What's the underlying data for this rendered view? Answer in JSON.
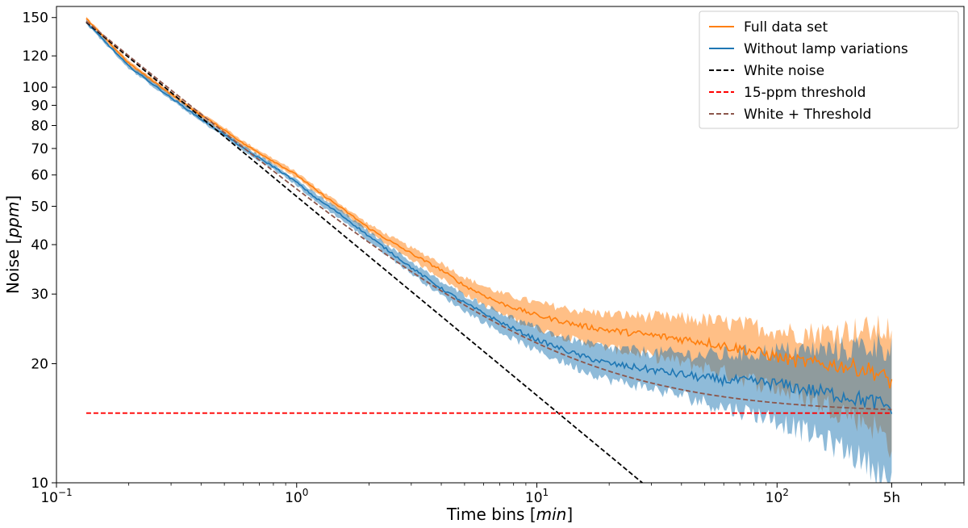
{
  "chart_data": {
    "type": "line",
    "title": "",
    "xlabel": {
      "prefix": "Time bins [",
      "unit": "min",
      "suffix": "]"
    },
    "ylabel": {
      "prefix": "Noise [",
      "unit": "ppm",
      "suffix": "]"
    },
    "xscale": "log",
    "yscale": "log",
    "xlim": [
      0.1,
      600
    ],
    "ylim": [
      10,
      160
    ],
    "x_ticks": [
      {
        "value": 0.1,
        "base": "10",
        "exp": "−1"
      },
      {
        "value": 1,
        "base": "10",
        "exp": "0"
      },
      {
        "value": 10,
        "base": "10",
        "exp": "1"
      },
      {
        "value": 100,
        "base": "10",
        "exp": "2"
      },
      {
        "value": 300,
        "label": "5h"
      }
    ],
    "y_ticks": [
      {
        "value": 10,
        "label": "10"
      },
      {
        "value": 20,
        "label": "20"
      },
      {
        "value": 30,
        "label": "30"
      },
      {
        "value": 40,
        "label": "40"
      },
      {
        "value": 50,
        "label": "50"
      },
      {
        "value": 60,
        "label": "60"
      },
      {
        "value": 70,
        "label": "70"
      },
      {
        "value": 80,
        "label": "80"
      },
      {
        "value": 90,
        "label": "90"
      },
      {
        "value": 100,
        "label": "100"
      },
      {
        "value": 120,
        "label": "120"
      },
      {
        "value": 150,
        "label": "150"
      }
    ],
    "legend_position": "top-right",
    "colors": {
      "full": "#ff7f0e",
      "without": "#1f77b4",
      "white": "#000000",
      "threshold": "#ff0000",
      "combined": "#8c564b"
    },
    "series": [
      {
        "name": "Full data set",
        "key": "full",
        "style": "solid",
        "x": [
          0.133,
          0.2,
          0.3,
          0.4,
          0.5,
          0.6,
          0.8,
          1.0,
          1.2,
          1.5,
          2.0,
          2.5,
          3.0,
          4.0,
          5.0,
          7.0,
          10,
          15,
          20,
          30,
          40,
          50,
          60,
          80,
          100,
          120,
          150,
          200,
          250,
          300
        ],
        "y": [
          149,
          115,
          96,
          85,
          78,
          72,
          65,
          60,
          55,
          50,
          44,
          40.5,
          38,
          34.5,
          31.5,
          28.5,
          26.5,
          25.0,
          24.3,
          23.6,
          23.1,
          22.7,
          22.2,
          21.5,
          20.8,
          20.3,
          20.0,
          19.7,
          19.2,
          18.0
        ],
        "band_lower": [
          147.5,
          113.5,
          94.7,
          83.8,
          76.9,
          70.9,
          64.0,
          59.0,
          54.0,
          49.0,
          43.0,
          39.3,
          36.7,
          33.0,
          30.0,
          26.8,
          24.5,
          22.8,
          21.9,
          20.9,
          20.2,
          19.6,
          19.0,
          18.1,
          17.3,
          16.7,
          16.0,
          15.0,
          14.0,
          12.5
        ],
        "band_upper": [
          150.5,
          116.5,
          97.3,
          86.2,
          79.1,
          73.1,
          66.0,
          61.0,
          56.0,
          51.0,
          45.0,
          41.7,
          39.3,
          36.0,
          33.0,
          30.2,
          28.5,
          27.2,
          26.7,
          26.3,
          26.0,
          25.8,
          25.4,
          24.9,
          24.3,
          24.0,
          24.0,
          24.4,
          24.4,
          24.5
        ]
      },
      {
        "name": "Without lamp variations",
        "key": "without",
        "style": "solid",
        "x": [
          0.133,
          0.2,
          0.3,
          0.4,
          0.5,
          0.6,
          0.8,
          1.0,
          1.2,
          1.5,
          2.0,
          2.5,
          3.0,
          4.0,
          5.0,
          7.0,
          10,
          15,
          20,
          30,
          40,
          50,
          60,
          80,
          100,
          120,
          150,
          200,
          250,
          300
        ],
        "y": [
          146,
          113,
          94,
          83,
          76,
          70,
          63,
          57.5,
          52.5,
          48,
          42,
          38,
          35,
          31,
          28.5,
          25.5,
          23.0,
          21.0,
          20.0,
          19.3,
          18.8,
          18.4,
          18.2,
          18.0,
          17.8,
          17.4,
          17.0,
          16.5,
          16.0,
          15.5
        ],
        "band_lower": [
          144.5,
          111.5,
          92.7,
          81.8,
          74.9,
          68.9,
          62.0,
          56.5,
          51.3,
          46.8,
          40.8,
          36.8,
          33.8,
          29.8,
          27.2,
          24.1,
          21.5,
          19.4,
          18.2,
          17.3,
          16.6,
          16.0,
          15.5,
          15.0,
          14.4,
          13.8,
          13.0,
          12.0,
          11.0,
          10.0
        ],
        "band_upper": [
          147.5,
          114.5,
          95.3,
          84.2,
          77.1,
          71.1,
          64.0,
          58.5,
          53.7,
          49.2,
          43.2,
          39.2,
          36.2,
          32.2,
          29.8,
          27.0,
          24.6,
          22.7,
          21.9,
          21.4,
          21.2,
          21.0,
          21.1,
          21.3,
          21.5,
          21.5,
          21.6,
          21.9,
          22.3,
          22.3
        ]
      },
      {
        "name": "White noise",
        "key": "white",
        "style": "dashed",
        "x": [
          0.133,
          27.5
        ],
        "y": [
          146,
          10
        ]
      },
      {
        "name": "15-ppm threshold",
        "key": "threshold",
        "style": "dashed",
        "x": [
          0.133,
          300
        ],
        "y": [
          15,
          15
        ]
      },
      {
        "name": "White + Threshold",
        "key": "combined",
        "style": "dashed",
        "formula": "sqrt(white^2 + 15^2)",
        "x": [
          0.133,
          300
        ],
        "y": [
          146.8,
          15.3
        ]
      }
    ]
  }
}
